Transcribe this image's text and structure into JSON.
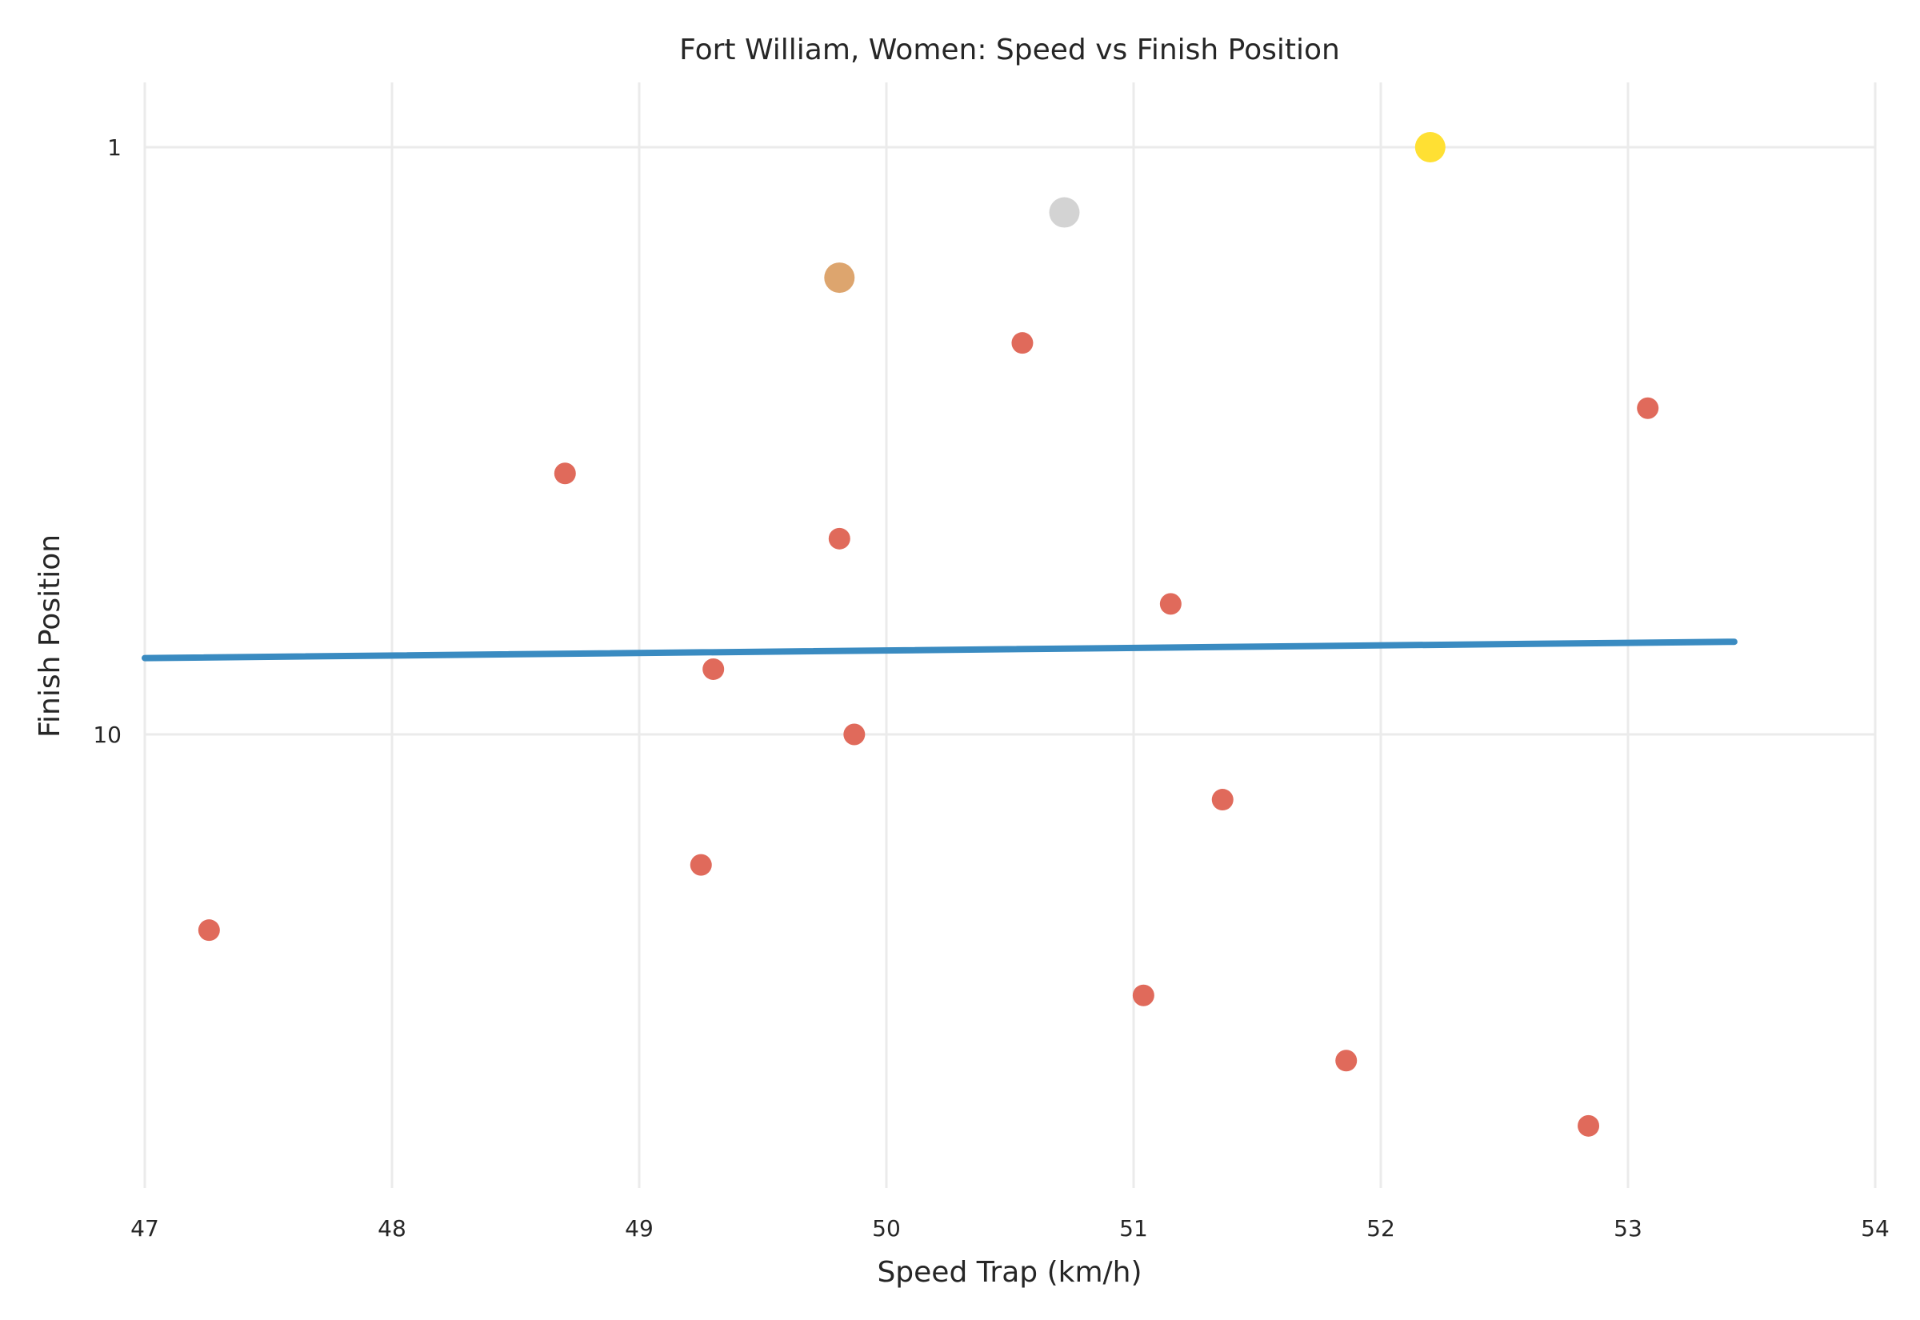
{
  "chart_data": {
    "type": "scatter",
    "title": "Fort William, Women: Speed vs Finish Position",
    "xlabel": "Speed Trap (km/h)",
    "ylabel": "Finish Position",
    "xlim": [
      47,
      54
    ],
    "ylim": [
      17,
      0
    ],
    "y_scale_note": "position axis inverted",
    "x_ticks": [
      "47",
      "48",
      "49",
      "50",
      "51",
      "52",
      "53",
      "54"
    ],
    "x_tick_values": [
      47,
      48,
      49,
      50,
      51,
      52,
      53,
      54
    ],
    "y_ticks": [
      "1",
      "10"
    ],
    "y_tick_values": [
      1,
      10
    ],
    "grid": true,
    "points": [
      {
        "x": 52.2,
        "y": 1,
        "color": "#FFE033",
        "size": "large"
      },
      {
        "x": 50.72,
        "y": 2,
        "color": "#D3D3D3",
        "size": "large"
      },
      {
        "x": 49.81,
        "y": 3,
        "color": "#DDA56E",
        "size": "large"
      },
      {
        "x": 50.55,
        "y": 4,
        "color": "#E06A5B",
        "size": "small"
      },
      {
        "x": 53.08,
        "y": 5,
        "color": "#E06A5B",
        "size": "small"
      },
      {
        "x": 48.7,
        "y": 6,
        "color": "#E06A5B",
        "size": "small"
      },
      {
        "x": 49.81,
        "y": 7,
        "color": "#E06A5B",
        "size": "small"
      },
      {
        "x": 51.15,
        "y": 8,
        "color": "#E06A5B",
        "size": "small"
      },
      {
        "x": 49.3,
        "y": 9,
        "color": "#E06A5B",
        "size": "small"
      },
      {
        "x": 49.87,
        "y": 10,
        "color": "#E06A5B",
        "size": "small"
      },
      {
        "x": 51.36,
        "y": 11,
        "color": "#E06A5B",
        "size": "small"
      },
      {
        "x": 49.25,
        "y": 12,
        "color": "#E06A5B",
        "size": "small"
      },
      {
        "x": 47.26,
        "y": 13,
        "color": "#E06A5B",
        "size": "small"
      },
      {
        "x": 51.04,
        "y": 14,
        "color": "#E06A5B",
        "size": "small"
      },
      {
        "x": 51.86,
        "y": 15,
        "color": "#E06A5B",
        "size": "small"
      },
      {
        "x": 52.84,
        "y": 16,
        "color": "#E06A5B",
        "size": "small"
      }
    ],
    "trend_line": {
      "x": [
        47,
        53.43
      ],
      "y": [
        8.83,
        8.58
      ],
      "color": "#3A8BC1"
    },
    "colors": {
      "gold": "#FFE033",
      "silver": "#D3D3D3",
      "bronze": "#DDA56E",
      "others": "#E06A5B",
      "trend": "#3A8BC1",
      "grid": "#EBEBEB",
      "text": "#262626"
    }
  }
}
